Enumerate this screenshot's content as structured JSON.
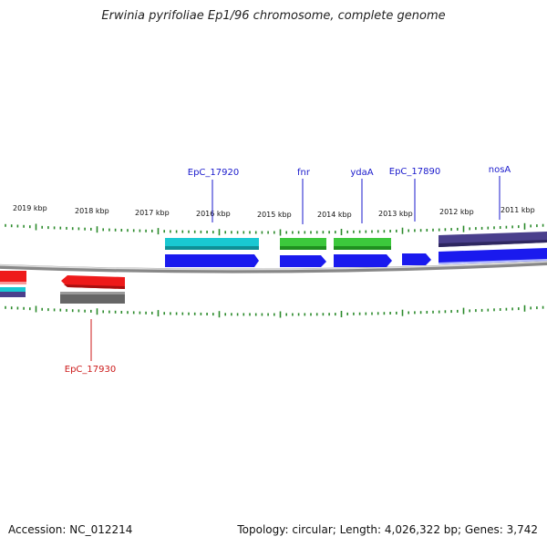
{
  "title": "Erwinia pyrifoliae Ep1/96 chromosome, complete genome",
  "accession": "Accession: NC_012214",
  "summary": "Topology: circular; Length: 4,026,322 bp; Genes: 3,742",
  "colors": {
    "cyan": "#19c8d2",
    "green": "#3cc83c",
    "blue": "#1a1aee",
    "purple": "#4a3f8c",
    "red": "#ee1a1a",
    "gray": "#666666",
    "tick": "#2a8a2a",
    "label_blue": "#1a1acc",
    "label_red": "#cc1a1a"
  },
  "kbp_labels": [
    "2019 kbp",
    "2018 kbp",
    "2017 kbp",
    "2016 kbp",
    "2015 kbp",
    "2014 kbp",
    "2013 kbp",
    "2012 kbp",
    "2011 kbp"
  ],
  "gene_labels": [
    {
      "text": "EpC_17920",
      "color": "label_blue"
    },
    {
      "text": "fnr",
      "color": "label_blue"
    },
    {
      "text": "ydaA",
      "color": "label_blue"
    },
    {
      "text": "EpC_17890",
      "color": "label_blue"
    },
    {
      "text": "nosA",
      "color": "label_blue"
    },
    {
      "text": "EpC_17930",
      "color": "label_red"
    }
  ]
}
